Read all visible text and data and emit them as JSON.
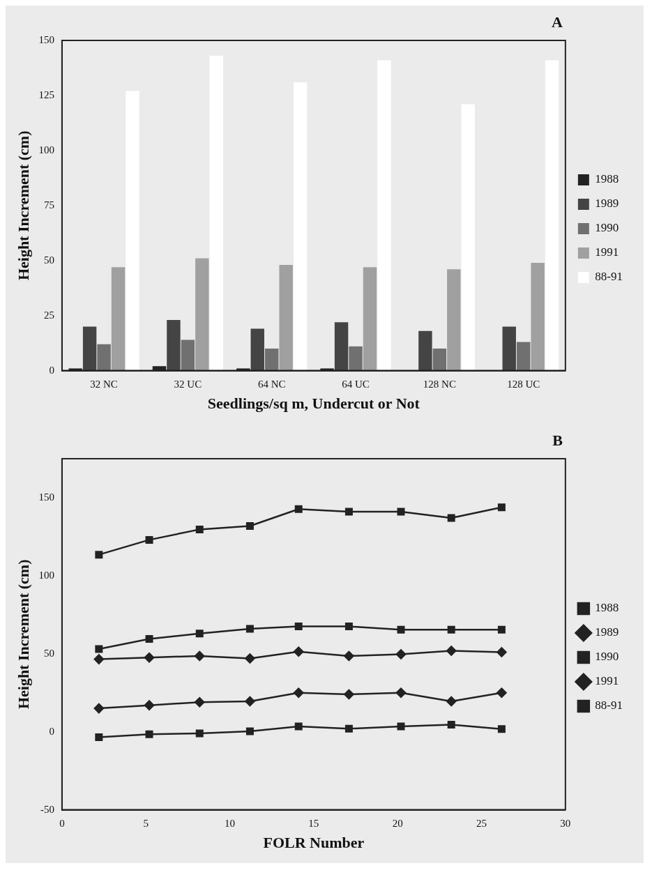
{
  "chart_data": [
    {
      "type": "bar",
      "title": "A",
      "xlabel": "Seedlings/sq m, Undercut or Not",
      "ylabel": "Height Increment (cm)",
      "categories": [
        "32 NC",
        "32 UC",
        "64 NC",
        "64 UC",
        "128 NC",
        "128 UC"
      ],
      "series": [
        {
          "name": "1988",
          "color": "#222222",
          "values": [
            1,
            2,
            1,
            1,
            0,
            0
          ]
        },
        {
          "name": "1989",
          "color": "#444444",
          "values": [
            20,
            23,
            19,
            22,
            18,
            20
          ]
        },
        {
          "name": "1990",
          "color": "#707070",
          "values": [
            12,
            14,
            10,
            11,
            10,
            13
          ]
        },
        {
          "name": "1991",
          "color": "#a0a0a0",
          "values": [
            47,
            51,
            48,
            47,
            46,
            49
          ]
        },
        {
          "name": "88-91",
          "color": "#ffffff",
          "values": [
            127,
            143,
            131,
            141,
            121,
            141
          ]
        }
      ],
      "ylim": [
        0,
        150
      ],
      "yticks": [
        0,
        25,
        50,
        75,
        100,
        125,
        150
      ],
      "grid": false,
      "legend": "right"
    },
    {
      "type": "line",
      "title": "B",
      "xlabel": "FOLR Number",
      "ylabel": "Height Increment (cm)",
      "x": [
        2.2,
        5.2,
        8.2,
        11.2,
        14.1,
        17.1,
        20.2,
        23.2,
        26.2
      ],
      "series": [
        {
          "name": "1988",
          "color": "#222222",
          "marker": "square",
          "values": [
            -3.5,
            -1.6,
            -1,
            0.3,
            3.4,
            2,
            3.4,
            4.5,
            1.8
          ]
        },
        {
          "name": "1989",
          "color": "#222222",
          "marker": "diamond",
          "values": [
            15,
            17,
            19,
            19.5,
            25,
            24,
            25,
            19.5,
            25
          ]
        },
        {
          "name": "1990",
          "color": "#222222",
          "marker": "square",
          "values": [
            53,
            59.5,
            63,
            66,
            67.5,
            67.5,
            65.4,
            65.4,
            65.4
          ]
        },
        {
          "name": "1991",
          "color": "#222222",
          "marker": "diamond",
          "values": [
            46.5,
            47.6,
            48.6,
            47,
            51.4,
            48.6,
            49.7,
            51.9,
            51
          ]
        },
        {
          "name": "88-91",
          "color": "#222222",
          "marker": "square",
          "values": [
            113.5,
            123,
            129.7,
            131.9,
            142.7,
            141,
            141,
            137,
            143.8
          ]
        }
      ],
      "xlim": [
        0,
        30
      ],
      "xticks": [
        0,
        5,
        10,
        15,
        20,
        25,
        30
      ],
      "ylim": [
        -50,
        175
      ],
      "yticks": [
        -50,
        0,
        50,
        100,
        150
      ],
      "grid": false,
      "legend": "right",
      "line_style": "solid"
    }
  ]
}
